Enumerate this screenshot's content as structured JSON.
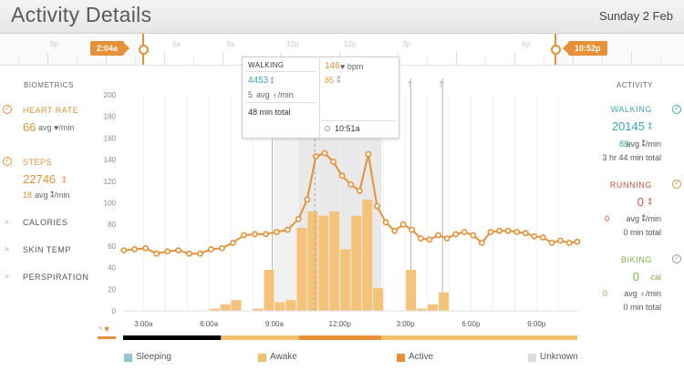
{
  "header": {
    "title": "Activity Details",
    "date": "Sunday 2 Feb"
  },
  "timeline": {
    "labels": [
      "9p",
      "3a",
      "6a",
      "9a",
      "12p",
      "3p",
      "6p",
      "9p"
    ],
    "start_marker": "2:04a",
    "end_marker": "10:52p"
  },
  "biometrics": {
    "heading": "BIOMETRICS",
    "heart_rate": {
      "label": "HEART RATE",
      "value": "66",
      "unit": "avg ♥/min"
    },
    "steps": {
      "label": "STEPS",
      "value": "22746",
      "unit": "",
      "sub_value": "18",
      "sub_unit": "avg ⁑/min"
    },
    "calories": {
      "label": "CALORIES"
    },
    "skin_temp": {
      "label": "SKIN TEMP"
    },
    "perspiration": {
      "label": "PERSPIRATION"
    }
  },
  "activity": {
    "heading": "ACTIVITY",
    "walking": {
      "label": "WALKING",
      "value": "20145",
      "avg": "88",
      "avg_unit": "avg ⁑/min",
      "total": "3 hr 44 min total"
    },
    "running": {
      "label": "RUNNING",
      "value": "0",
      "avg": "0",
      "avg_unit": "avg ⁑/min",
      "total": "0 min total"
    },
    "biking": {
      "label": "BIKING",
      "value": "0",
      "value_unit": "cal",
      "avg": "0",
      "avg_unit": "avg ♁/min",
      "total": "0 min total"
    }
  },
  "tooltip": {
    "activity": "WALKING",
    "steps": "4453",
    "avg": "5",
    "avg_unit": "avg ♁/min",
    "total": "48 min total",
    "heart": "146",
    "heart_unit": "♥ bpm",
    "steps2": "85",
    "time": "10:51a"
  },
  "legend": {
    "sleeping": "Sleeping",
    "awake": "Awake",
    "active": "Active",
    "unknown": "Unknown"
  },
  "colors": {
    "orange": "#e69137",
    "bar": "#f5c27a",
    "sleep": "#92c3d6",
    "awake": "#f0c06c",
    "active": "#e69137",
    "unknown": "#dddddd",
    "walking": "#3aa8b8",
    "running": "#d2543a",
    "biking": "#7cb342"
  },
  "chart_data": {
    "type": "bar",
    "title": "",
    "ylabel": "",
    "ylim": [
      0,
      200
    ],
    "yticks": [
      0,
      20,
      40,
      60,
      80,
      100,
      120,
      140,
      160,
      180,
      200
    ],
    "xlim": [
      2.07,
      22.87
    ],
    "xtick_labels": [
      {
        "t": 3,
        "label": "3:00a"
      },
      {
        "t": 6,
        "label": "6:00a"
      },
      {
        "t": 9,
        "label": "9:00a"
      },
      {
        "t": 12,
        "label": "12:00p"
      },
      {
        "t": 15,
        "label": "3:00p"
      },
      {
        "t": 18,
        "label": "6:00p"
      },
      {
        "t": 21,
        "label": "9:00p"
      }
    ],
    "series": [
      {
        "name": "Steps",
        "type": "bar",
        "width": 0.5,
        "points": [
          [
            6.25,
            2
          ],
          [
            6.75,
            6
          ],
          [
            7.25,
            10
          ],
          [
            8.25,
            2
          ],
          [
            8.75,
            38
          ],
          [
            9.25,
            8
          ],
          [
            9.75,
            10
          ],
          [
            10.25,
            77
          ],
          [
            10.75,
            92
          ],
          [
            11.25,
            88
          ],
          [
            11.75,
            92
          ],
          [
            12.25,
            57
          ],
          [
            12.75,
            88
          ],
          [
            13.25,
            103
          ],
          [
            13.75,
            21
          ],
          [
            15.25,
            38
          ],
          [
            15.75,
            2
          ],
          [
            16.25,
            6
          ],
          [
            16.75,
            17
          ]
        ]
      },
      {
        "name": "Heart rate",
        "type": "line",
        "points": [
          [
            2.1,
            56
          ],
          [
            2.6,
            57
          ],
          [
            3.1,
            58
          ],
          [
            3.6,
            53
          ],
          [
            4.1,
            55
          ],
          [
            4.6,
            56
          ],
          [
            5.1,
            53
          ],
          [
            5.6,
            53
          ],
          [
            6.1,
            57
          ],
          [
            6.6,
            58
          ],
          [
            7.1,
            63
          ],
          [
            7.6,
            70
          ],
          [
            8.1,
            71
          ],
          [
            8.6,
            71
          ],
          [
            9.1,
            73
          ],
          [
            9.6,
            75
          ],
          [
            10.1,
            85
          ],
          [
            10.5,
            103
          ],
          [
            10.9,
            143
          ],
          [
            11.3,
            146
          ],
          [
            11.7,
            138
          ],
          [
            12.1,
            125
          ],
          [
            12.5,
            117
          ],
          [
            12.9,
            111
          ],
          [
            13.3,
            145
          ],
          [
            13.7,
            97
          ],
          [
            14.1,
            82
          ],
          [
            14.5,
            74
          ],
          [
            14.9,
            80
          ],
          [
            15.3,
            75
          ],
          [
            15.7,
            67
          ],
          [
            16.1,
            66
          ],
          [
            16.5,
            70
          ],
          [
            16.9,
            67
          ],
          [
            17.3,
            71
          ],
          [
            17.7,
            73
          ],
          [
            18.1,
            70
          ],
          [
            18.5,
            63
          ],
          [
            18.9,
            73
          ],
          [
            19.3,
            74
          ],
          [
            19.7,
            74
          ],
          [
            20.1,
            73
          ],
          [
            20.5,
            72
          ],
          [
            20.9,
            69
          ],
          [
            21.3,
            68
          ],
          [
            21.7,
            63
          ],
          [
            22.1,
            65
          ],
          [
            22.5,
            63
          ],
          [
            22.87,
            64
          ]
        ]
      }
    ],
    "timeline_bands": [
      {
        "from": 2.07,
        "to": 6.55,
        "state": "sleeping"
      },
      {
        "from": 6.55,
        "to": 10.1,
        "state": "awake"
      },
      {
        "from": 10.1,
        "to": 13.9,
        "state": "active"
      },
      {
        "from": 13.9,
        "to": 22.87,
        "state": "awake"
      }
    ],
    "legend": [
      "Sleeping",
      "Awake",
      "Active",
      "Unknown"
    ]
  }
}
